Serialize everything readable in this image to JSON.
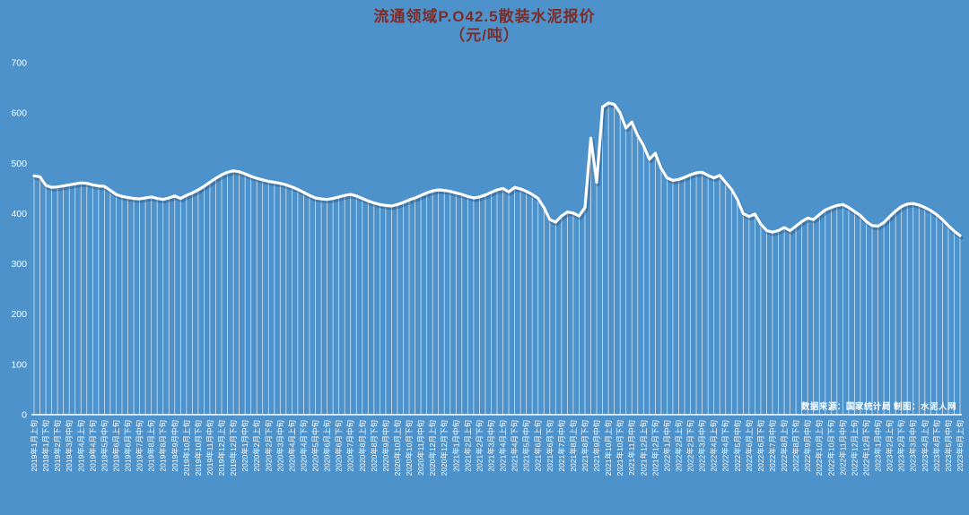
{
  "title": {
    "line1": "流通领域P.O42.5散装水泥报价",
    "line2": "（元/吨）"
  },
  "source_note": "数据来源：国家统计局 制图：水泥人网",
  "colors": {
    "background": "#4D92CB",
    "title": "#7E2C28",
    "line": "#FFFFFF",
    "axis_text": "#FFFFFF",
    "drop_line": "#FFFFFF",
    "shadow": "rgba(25,55,95,0.30)"
  },
  "chart_data": {
    "type": "line",
    "title": "流通领域P.O42.5散装水泥报价（元/吨）",
    "ylabel": "",
    "xlabel": "",
    "ylim": [
      0,
      700
    ],
    "yticks": [
      0,
      100,
      200,
      300,
      400,
      500,
      600,
      700
    ],
    "grid": false,
    "legend_position": "none",
    "drop_lines": true,
    "label_every": 2,
    "x_labels": [
      "2019年1月上旬",
      "2019年1月下旬",
      "2019年2月下旬",
      "2019年3月中旬",
      "2019年4月上旬",
      "2019年4月下旬",
      "2019年5月中旬",
      "2019年6月上旬",
      "2019年6月下旬",
      "2019年7月中旬",
      "2019年8月上旬",
      "2019年8月下旬",
      "2019年9月中旬",
      "2019年10月上旬",
      "2019年10月下旬",
      "2019年11月中旬",
      "2019年12月上旬",
      "2019年12月下旬",
      "2020年1月中旬",
      "2020年2月上旬",
      "2020年2月下旬",
      "2020年3月中旬",
      "2020年4月上旬",
      "2020年4月下旬",
      "2020年5月中旬",
      "2020年6月上旬",
      "2020年6月下旬",
      "2020年7月中旬",
      "2020年8月上旬",
      "2020年8月下旬",
      "2020年9月中旬",
      "2020年10月上旬",
      "2020年10月下旬",
      "2020年11月中旬",
      "2020年12月上旬",
      "2020年12月下旬",
      "2021年1月中旬",
      "2021年2月上旬",
      "2021年2月下旬",
      "2021年3月中旬",
      "2021年4月上旬",
      "2021年4月下旬",
      "2021年5月中旬",
      "2021年6月上旬",
      "2021年6月下旬",
      "2021年7月中旬",
      "2021年8月上旬",
      "2021年8月下旬",
      "2021年9月中旬",
      "2021年10月上旬",
      "2021年10月下旬",
      "2021年11月中旬",
      "2021年12月上旬",
      "2021年12月下旬",
      "2022年1月中旬",
      "2022年2月上旬",
      "2022年2月下旬",
      "2022年3月中旬",
      "2022年4月上旬",
      "2022年4月下旬",
      "2022年5月中旬",
      "2022年6月上旬",
      "2022年6月下旬",
      "2022年7月中旬",
      "2022年8月上旬",
      "2022年8月下旬",
      "2022年9月中旬",
      "2022年10月上旬",
      "2022年10月下旬",
      "2022年11月中旬",
      "2022年12月上旬",
      "2022年12月下旬",
      "2023年1月中旬",
      "2023年2月上旬",
      "2023年2月下旬",
      "2023年3月中旬",
      "2023年4月上旬",
      "2023年4月下旬",
      "2023年5月中旬",
      "2023年6月上旬"
    ],
    "values": [
      475,
      473,
      456,
      452,
      453,
      455,
      457,
      459,
      461,
      460,
      457,
      455,
      454,
      446,
      438,
      434,
      432,
      430,
      429,
      431,
      433,
      430,
      428,
      431,
      435,
      430,
      436,
      441,
      447,
      454,
      462,
      470,
      477,
      482,
      485,
      483,
      479,
      474,
      470,
      467,
      464,
      462,
      460,
      457,
      453,
      448,
      442,
      436,
      431,
      429,
      428,
      430,
      433,
      436,
      438,
      435,
      430,
      425,
      421,
      418,
      416,
      415,
      418,
      422,
      427,
      431,
      436,
      441,
      445,
      447,
      446,
      444,
      441,
      438,
      434,
      431,
      433,
      437,
      442,
      447,
      450,
      443,
      452,
      449,
      444,
      438,
      430,
      412,
      388,
      383,
      395,
      403,
      401,
      395,
      412,
      550,
      462,
      612,
      620,
      617,
      600,
      570,
      582,
      555,
      535,
      508,
      520,
      490,
      471,
      466,
      468,
      472,
      477,
      481,
      482,
      476,
      471,
      476,
      462,
      448,
      428,
      400,
      394,
      399,
      379,
      366,
      363,
      366,
      372,
      366,
      375,
      384,
      391,
      388,
      398,
      407,
      412,
      416,
      418,
      412,
      404,
      396,
      384,
      376,
      375,
      382,
      394,
      405,
      414,
      419,
      420,
      417,
      412,
      406,
      398,
      388,
      376,
      365,
      356
    ]
  }
}
